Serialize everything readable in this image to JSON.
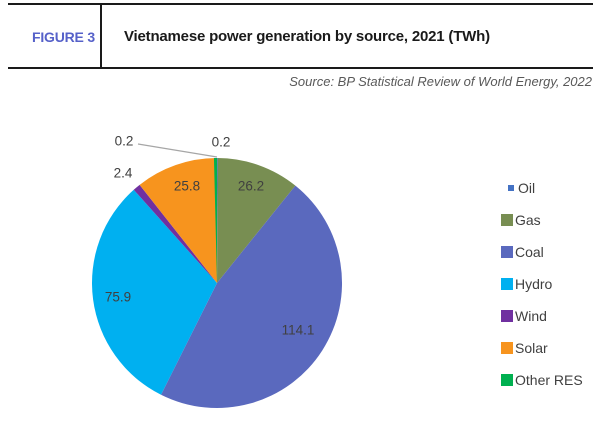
{
  "header": {
    "figure_label": "FIGURE 3",
    "title": "Vietnamese power generation by source, 2021 (TWh)",
    "source": "Source: BP Statistical Review of World Energy, 2022"
  },
  "colors": {
    "figure_label": "#5661C9",
    "rule": "#1A1A1A",
    "title_text": "#1A1A1A",
    "source_text": "#595959",
    "data_label": "#404040",
    "legend_text": "#404040",
    "leader_line": "#A6A6A6",
    "background": "#FFFFFF"
  },
  "chart_data": {
    "type": "pie",
    "title": "Vietnamese power generation by source, 2021 (TWh)",
    "unit": "TWh",
    "total": 244.8,
    "start_angle_deg": 0,
    "direction": "clockwise",
    "legend_position": "right",
    "series": [
      {
        "name": "Oil",
        "value": 0.2,
        "label": "0.2",
        "color": "#4472C4"
      },
      {
        "name": "Gas",
        "value": 26.2,
        "label": "26.2",
        "color": "#788E52"
      },
      {
        "name": "Coal",
        "value": 114.1,
        "label": "114.1",
        "color": "#5A69BE"
      },
      {
        "name": "Hydro",
        "value": 75.9,
        "label": "75.9",
        "color": "#00B0F0"
      },
      {
        "name": "Wind",
        "value": 2.4,
        "label": "2.4",
        "color": "#7030A0"
      },
      {
        "name": "Solar",
        "value": 25.8,
        "label": "25.8",
        "color": "#F7941E"
      },
      {
        "name": "Other RES",
        "value": 0.2,
        "label": "0.2",
        "color": "#00B050"
      }
    ],
    "legend": [
      "Oil",
      "Gas",
      "Coal",
      "Hydro",
      "Wind",
      "Solar",
      "Other RES"
    ]
  }
}
